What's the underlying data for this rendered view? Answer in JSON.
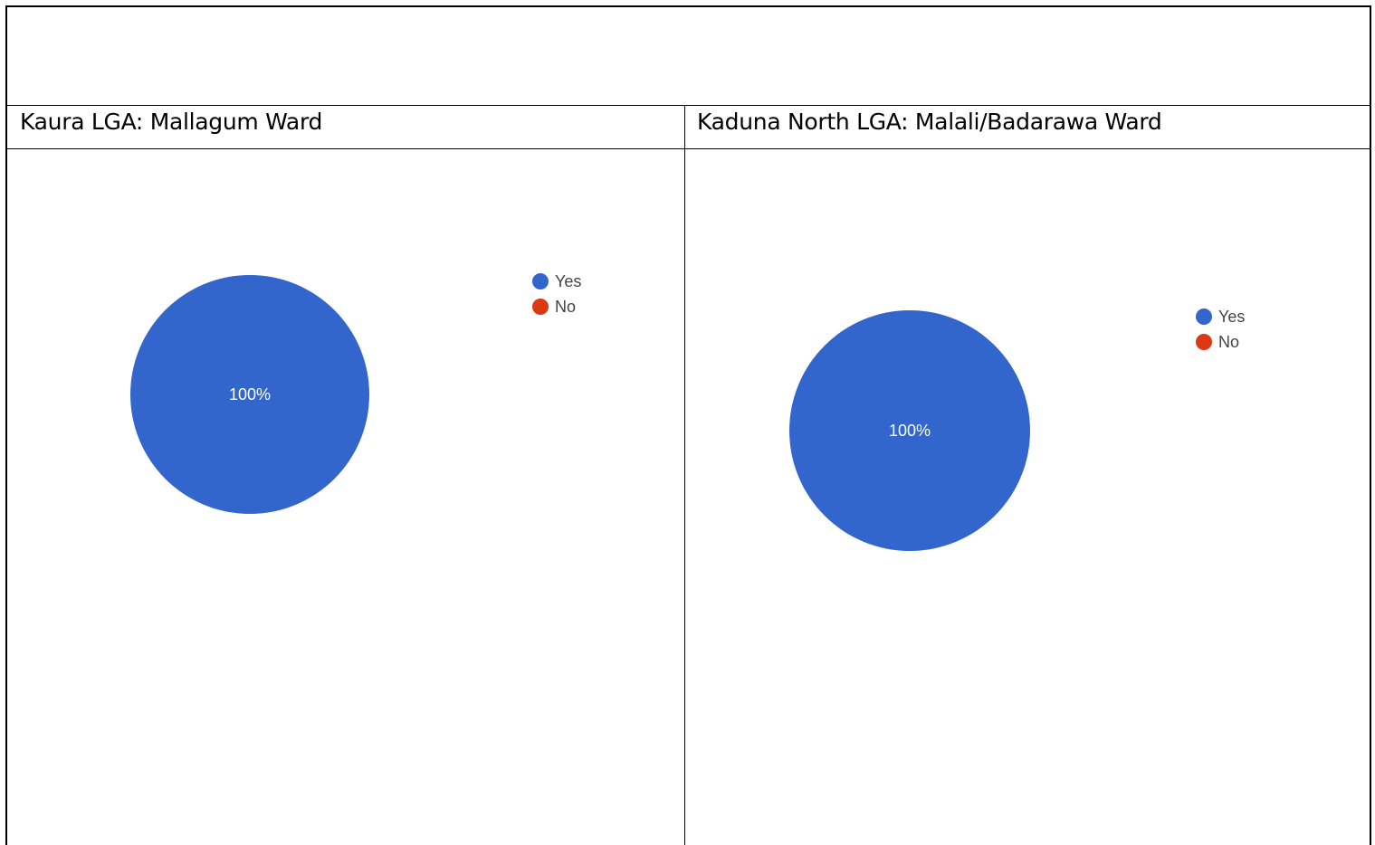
{
  "table": {
    "left_header": "Kaura LGA: Mallagum Ward",
    "right_header": "Kaduna North LGA: Malali/Badarawa Ward"
  },
  "chart_data": [
    {
      "type": "pie",
      "categories": [
        "Yes",
        "No"
      ],
      "values": [
        100,
        0
      ],
      "slice_labels": [
        "100%",
        ""
      ],
      "colors": [
        "#3366cc",
        "#dc3912"
      ],
      "legend_position": "right"
    },
    {
      "type": "pie",
      "categories": [
        "Yes",
        "No"
      ],
      "values": [
        100,
        0
      ],
      "slice_labels": [
        "100%",
        ""
      ],
      "colors": [
        "#3366cc",
        "#dc3912"
      ],
      "legend_position": "right"
    }
  ]
}
